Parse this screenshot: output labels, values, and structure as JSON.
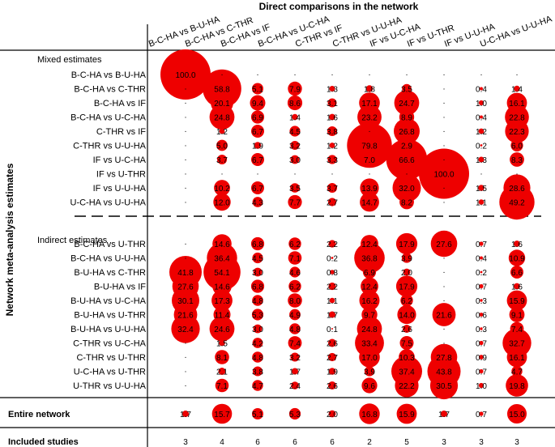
{
  "chart_data": {
    "type": "table",
    "title": "Direct comparisons in the network",
    "ylabel": "Network meta-analysis estimates",
    "columns": [
      "B-C-HA vs B-U-HA",
      "B-C-HA vs C-THR",
      "B-C-HA vs IF",
      "B-C-HA vs U-C-HA",
      "C-THR vs IF",
      "C-THR vs U-U-HA",
      "IF vs U-C-HA",
      "IF vs U-THR",
      "IF vs U-U-HA",
      "U-C-HA vs U-U-HA"
    ],
    "sections": [
      {
        "title": "Mixed estimates",
        "rows": [
          {
            "label": "B-C-HA vs B-U-HA",
            "values": [
              "100.0",
              ".",
              ".",
              ".",
              ".",
              ".",
              ".",
              ".",
              ".",
              "."
            ]
          },
          {
            "label": "B-C-HA vs C-THR",
            "values": [
              ".",
              "58.8",
              "5.1",
              "7.9",
              "1.3",
              "1.8",
              "3.5",
              ".",
              "0.4",
              "1.4"
            ]
          },
          {
            "label": "B-C-HA vs IF",
            "values": [
              ".",
              "20.1",
              "9.4",
              "8.6",
              "3.1",
              "17.1",
              "24.7",
              ".",
              "1.0",
              "16.1"
            ]
          },
          {
            "label": "B-C-HA vs U-C-HA",
            "values": [
              ".",
              "24.8",
              "6.9",
              "1.4",
              "1.6",
              "23.2",
              "8.9",
              ".",
              "0.4",
              "22.8"
            ]
          },
          {
            "label": "C-THR vs IF",
            "values": [
              ".",
              "1.2",
              "6.7",
              "4.5",
              "3.8",
              ".",
              "26.8",
              ".",
              "1.2",
              "22.3"
            ]
          },
          {
            "label": "C-THR vs U-U-HA",
            "values": [
              ".",
              "5.0",
              "1.9",
              "3.2",
              "1.2",
              "79.8",
              "2.9",
              ".",
              "0.2",
              "6.0"
            ]
          },
          {
            "label": "IF vs U-C-HA",
            "values": [
              ".",
              "3.7",
              "6.7",
              "3.0",
              "3.3",
              "7.0",
              "66.6",
              ".",
              "1.3",
              "8.3"
            ]
          },
          {
            "label": "IF vs U-THR",
            "values": [
              ".",
              ".",
              ".",
              ".",
              ".",
              ".",
              ".",
              "100.0",
              ".",
              "."
            ]
          },
          {
            "label": "IF vs U-U-HA",
            "values": [
              ".",
              "10.2",
              "6.7",
              "3.5",
              "3.7",
              "13.9",
              "32.0",
              ".",
              "1.5",
              "28.6"
            ]
          },
          {
            "label": "U-C-HA vs U-U-HA",
            "values": [
              ".",
              "12.0",
              "4.3",
              "7.7",
              "2.7",
              "14.7",
              "8.2",
              ".",
              "1.1",
              "49.2"
            ]
          }
        ]
      },
      {
        "title": "Indirect estimates",
        "rows": [
          {
            "label": "B-C-HA vs U-THR",
            "values": [
              ".",
              "14.6",
              "6.8",
              "6.2",
              "2.2",
              "12.4",
              "17.9",
              "27.6",
              "0.7",
              "1.6"
            ]
          },
          {
            "label": "B-C-HA vs U-U-HA",
            "values": [
              ".",
              "36.4",
              "4.5",
              "7.1",
              "0.2",
              "36.8",
              "3.9",
              ".",
              "0.4",
              "10.9"
            ]
          },
          {
            "label": "B-U-HA vs C-THR",
            "values": [
              "41.8",
              "54.1",
              "3.0",
              "4.6",
              "0.8",
              "6.9",
              "2.0",
              ".",
              "0.2",
              "6.6"
            ]
          },
          {
            "label": "B-U-HA vs IF",
            "values": [
              "27.6",
              "14.6",
              "6.8",
              "6.2",
              "2.2",
              "12.4",
              "17.9",
              ".",
              "0.7",
              "1.6"
            ]
          },
          {
            "label": "B-U-HA vs U-C-HA",
            "values": [
              "30.1",
              "17.3",
              "4.8",
              "8.0",
              "1.1",
              "16.2",
              "6.2",
              ".",
              "0.3",
              "15.9"
            ]
          },
          {
            "label": "B-U-HA vs U-THR",
            "values": [
              "21.6",
              "11.4",
              "5.3",
              "4.9",
              "1.7",
              "9.7",
              "14.0",
              "21.6",
              "0.6",
              "9.1"
            ]
          },
          {
            "label": "B-U-HA vs U-U-HA",
            "values": [
              "32.4",
              "24.6",
              "3.0",
              "4.8",
              "0.1",
              "24.8",
              "2.6",
              ".",
              "0.3",
              "7.4"
            ]
          },
          {
            "label": "C-THR vs U-C-HA",
            "values": [
              ".",
              "1.5",
              "4.2",
              "7.4",
              "2.6",
              "33.4",
              "7.5",
              ".",
              "0.7",
              "32.7"
            ]
          },
          {
            "label": "C-THR vs U-THR",
            "values": [
              ".",
              "8.1",
              "4.8",
              "3.2",
              "2.7",
              "17.0",
              "10.3",
              "27.8",
              "0.9",
              "16.1"
            ]
          },
          {
            "label": "U-C-HA vs U-THR",
            "values": [
              ".",
              "2.1",
              "3.8",
              "1.7",
              "1.9",
              "3.9",
              "37.4",
              "43.8",
              "0.7",
              "4.7"
            ]
          },
          {
            "label": "U-THR vs U-U-HA",
            "values": [
              ".",
              "7.1",
              "4.7",
              "2.4",
              "2.6",
              "9.6",
              "22.2",
              "30.5",
              "1.0",
              "19.8"
            ]
          }
        ]
      }
    ],
    "entire_network": {
      "label": "Entire network",
      "values": [
        "1.7",
        "15.7",
        "5.1",
        "5.3",
        "2.0",
        "16.8",
        "15.9",
        "1.7",
        "0.7",
        "15.0"
      ]
    },
    "included_studies": {
      "label": "Included studies",
      "values": [
        "3",
        "4",
        "6",
        "6",
        "6",
        "2",
        "5",
        "3",
        "3",
        "3"
      ]
    }
  }
}
